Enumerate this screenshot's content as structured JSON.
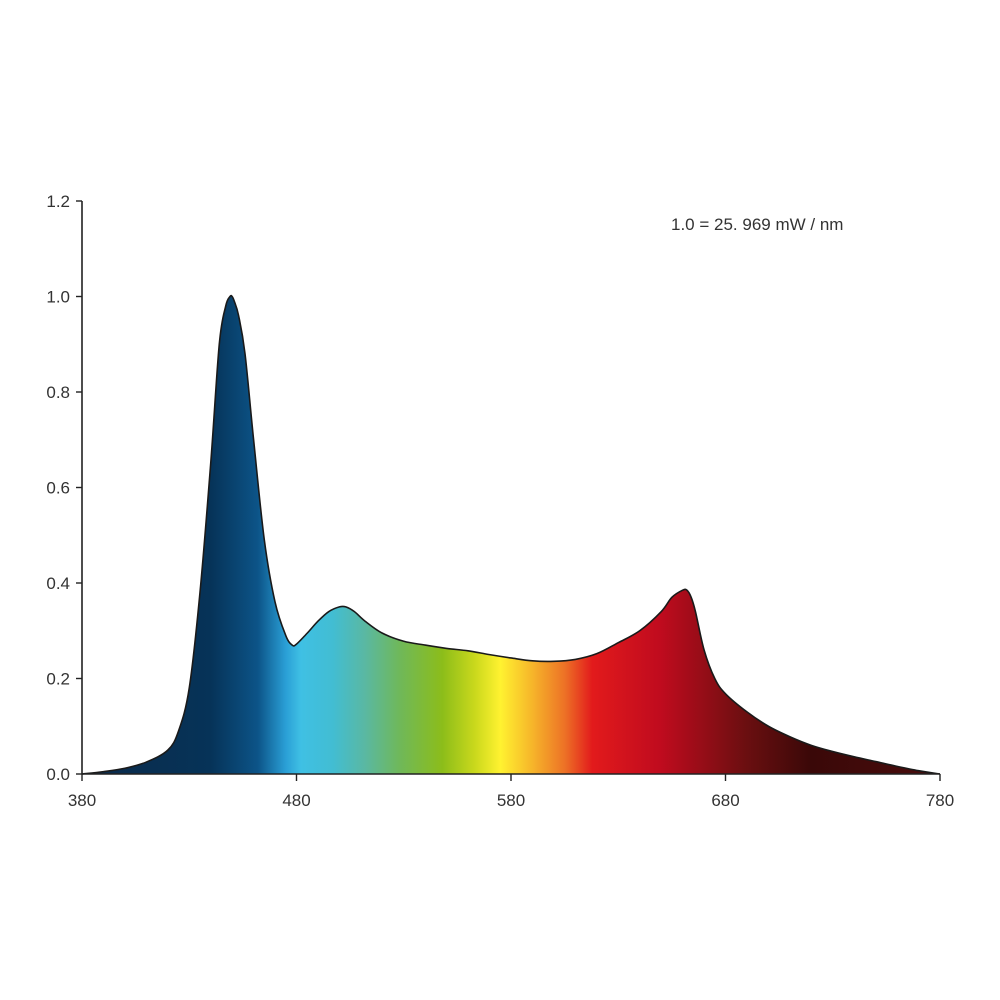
{
  "chart_data": {
    "type": "area",
    "title": "",
    "xlabel": "",
    "ylabel": "",
    "xlim": [
      380,
      780
    ],
    "ylim": [
      0,
      1.2
    ],
    "x_ticks": [
      "380",
      "480",
      "580",
      "680",
      "780"
    ],
    "y_ticks": [
      "0.0",
      "0.2",
      "0.4",
      "0.6",
      "0.8",
      "1.0",
      "1.2"
    ],
    "grid": false,
    "legend": "none",
    "annotation": "1.0 = 25. 969 mW / nm",
    "series": [
      {
        "x": [
          380,
          390,
          400,
          410,
          420,
          425,
          430,
          435,
          440,
          444,
          447,
          449,
          450,
          451,
          453,
          456,
          460,
          465,
          470,
          475,
          478,
          480,
          485,
          490,
          495,
          500,
          503,
          507,
          512,
          520,
          530,
          540,
          550,
          560,
          570,
          580,
          590,
          600,
          610,
          620,
          630,
          640,
          650,
          655,
          660,
          662,
          664,
          666,
          670,
          675,
          680,
          690,
          700,
          710,
          720,
          730,
          740,
          750,
          760,
          770,
          780
        ],
        "values": [
          0.0,
          0.005,
          0.012,
          0.025,
          0.05,
          0.09,
          0.18,
          0.38,
          0.65,
          0.9,
          0.98,
          1.0,
          1.0,
          0.99,
          0.96,
          0.88,
          0.7,
          0.49,
          0.36,
          0.29,
          0.27,
          0.272,
          0.295,
          0.32,
          0.34,
          0.35,
          0.35,
          0.34,
          0.32,
          0.295,
          0.278,
          0.27,
          0.263,
          0.258,
          0.25,
          0.243,
          0.237,
          0.236,
          0.24,
          0.252,
          0.275,
          0.3,
          0.34,
          0.37,
          0.385,
          0.385,
          0.37,
          0.34,
          0.26,
          0.2,
          0.168,
          0.13,
          0.1,
          0.078,
          0.06,
          0.047,
          0.036,
          0.026,
          0.016,
          0.007,
          0.0
        ]
      }
    ],
    "gradient_colors": [
      {
        "nm": 380,
        "color": "#0b2a4a"
      },
      {
        "nm": 440,
        "color": "#063358"
      },
      {
        "nm": 462,
        "color": "#0c5488"
      },
      {
        "nm": 475,
        "color": "#2a9fd6"
      },
      {
        "nm": 482,
        "color": "#3fc0e4"
      },
      {
        "nm": 497,
        "color": "#42bdd2"
      },
      {
        "nm": 512,
        "color": "#5ab8a2"
      },
      {
        "nm": 528,
        "color": "#6fb85a"
      },
      {
        "nm": 548,
        "color": "#8cbd1a"
      },
      {
        "nm": 563,
        "color": "#c9d81c"
      },
      {
        "nm": 575,
        "color": "#fff230"
      },
      {
        "nm": 590,
        "color": "#f6b52a"
      },
      {
        "nm": 605,
        "color": "#ed7226"
      },
      {
        "nm": 618,
        "color": "#e21a1c"
      },
      {
        "nm": 650,
        "color": "#bf0b1e"
      },
      {
        "nm": 690,
        "color": "#6a0f10"
      },
      {
        "nm": 720,
        "color": "#3a0808"
      },
      {
        "nm": 780,
        "color": "#4a0d0d"
      }
    ],
    "outline_color": "#1a1a1a",
    "axis_color": "#222222"
  }
}
